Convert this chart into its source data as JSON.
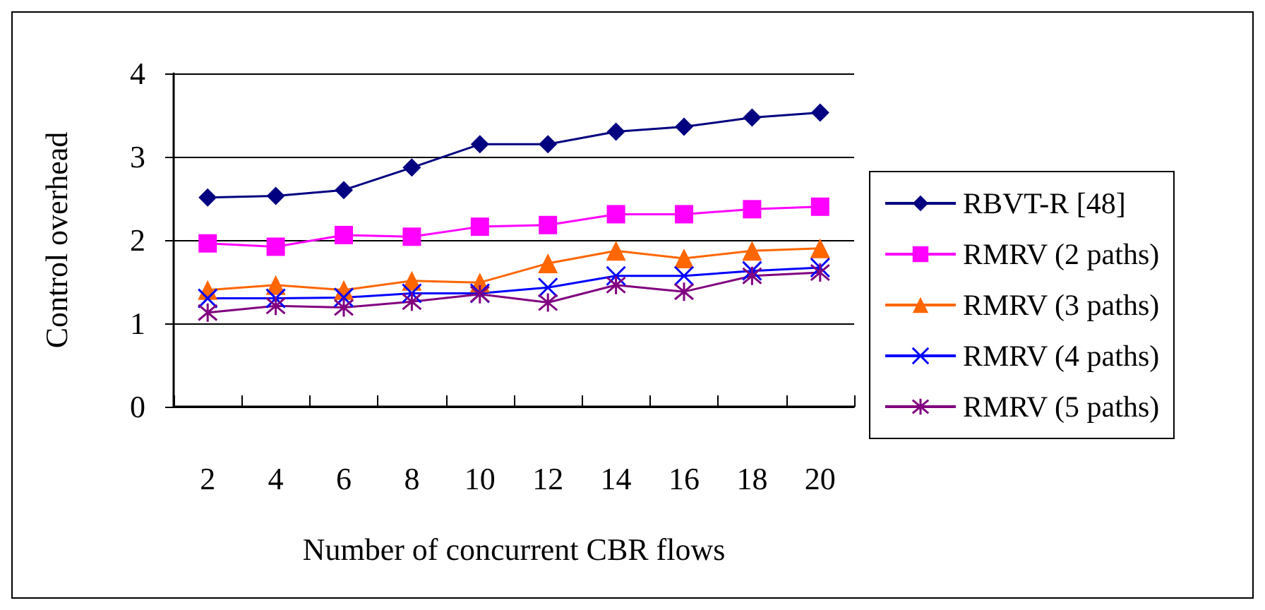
{
  "chart_data": {
    "type": "line",
    "xlabel": "Number of concurrent CBR flows",
    "ylabel": "Control overhead",
    "categories": [
      "2",
      "4",
      "6",
      "8",
      "10",
      "12",
      "14",
      "16",
      "18",
      "20"
    ],
    "series": [
      {
        "name": "RBVT-R [48]",
        "color": "#000080",
        "marker": "diamond",
        "values": [
          2.51,
          2.53,
          2.6,
          2.87,
          3.15,
          3.15,
          3.3,
          3.36,
          3.47,
          3.53
        ]
      },
      {
        "name": "RMRV (2 paths)",
        "color": "#ff00ff",
        "marker": "square",
        "values": [
          1.96,
          1.92,
          2.06,
          2.04,
          2.16,
          2.18,
          2.31,
          2.31,
          2.37,
          2.4
        ]
      },
      {
        "name": "RMRV (3 paths)",
        "color": "#ff6600",
        "marker": "triangle",
        "values": [
          1.4,
          1.46,
          1.4,
          1.51,
          1.49,
          1.72,
          1.87,
          1.78,
          1.87,
          1.9
        ]
      },
      {
        "name": "RMRV (4 paths)",
        "color": "#0000ff",
        "marker": "cross",
        "values": [
          1.3,
          1.3,
          1.31,
          1.36,
          1.36,
          1.43,
          1.57,
          1.57,
          1.63,
          1.67
        ]
      },
      {
        "name": "RMRV (5 paths)",
        "color": "#800080",
        "marker": "cross",
        "values": [
          1.13,
          1.21,
          1.19,
          1.26,
          1.35,
          1.25,
          1.46,
          1.38,
          1.57,
          1.61
        ]
      }
    ],
    "ylim": [
      0,
      4
    ],
    "yticks": [
      0,
      1,
      2,
      3,
      4
    ],
    "grid": "y",
    "legend": "right"
  }
}
